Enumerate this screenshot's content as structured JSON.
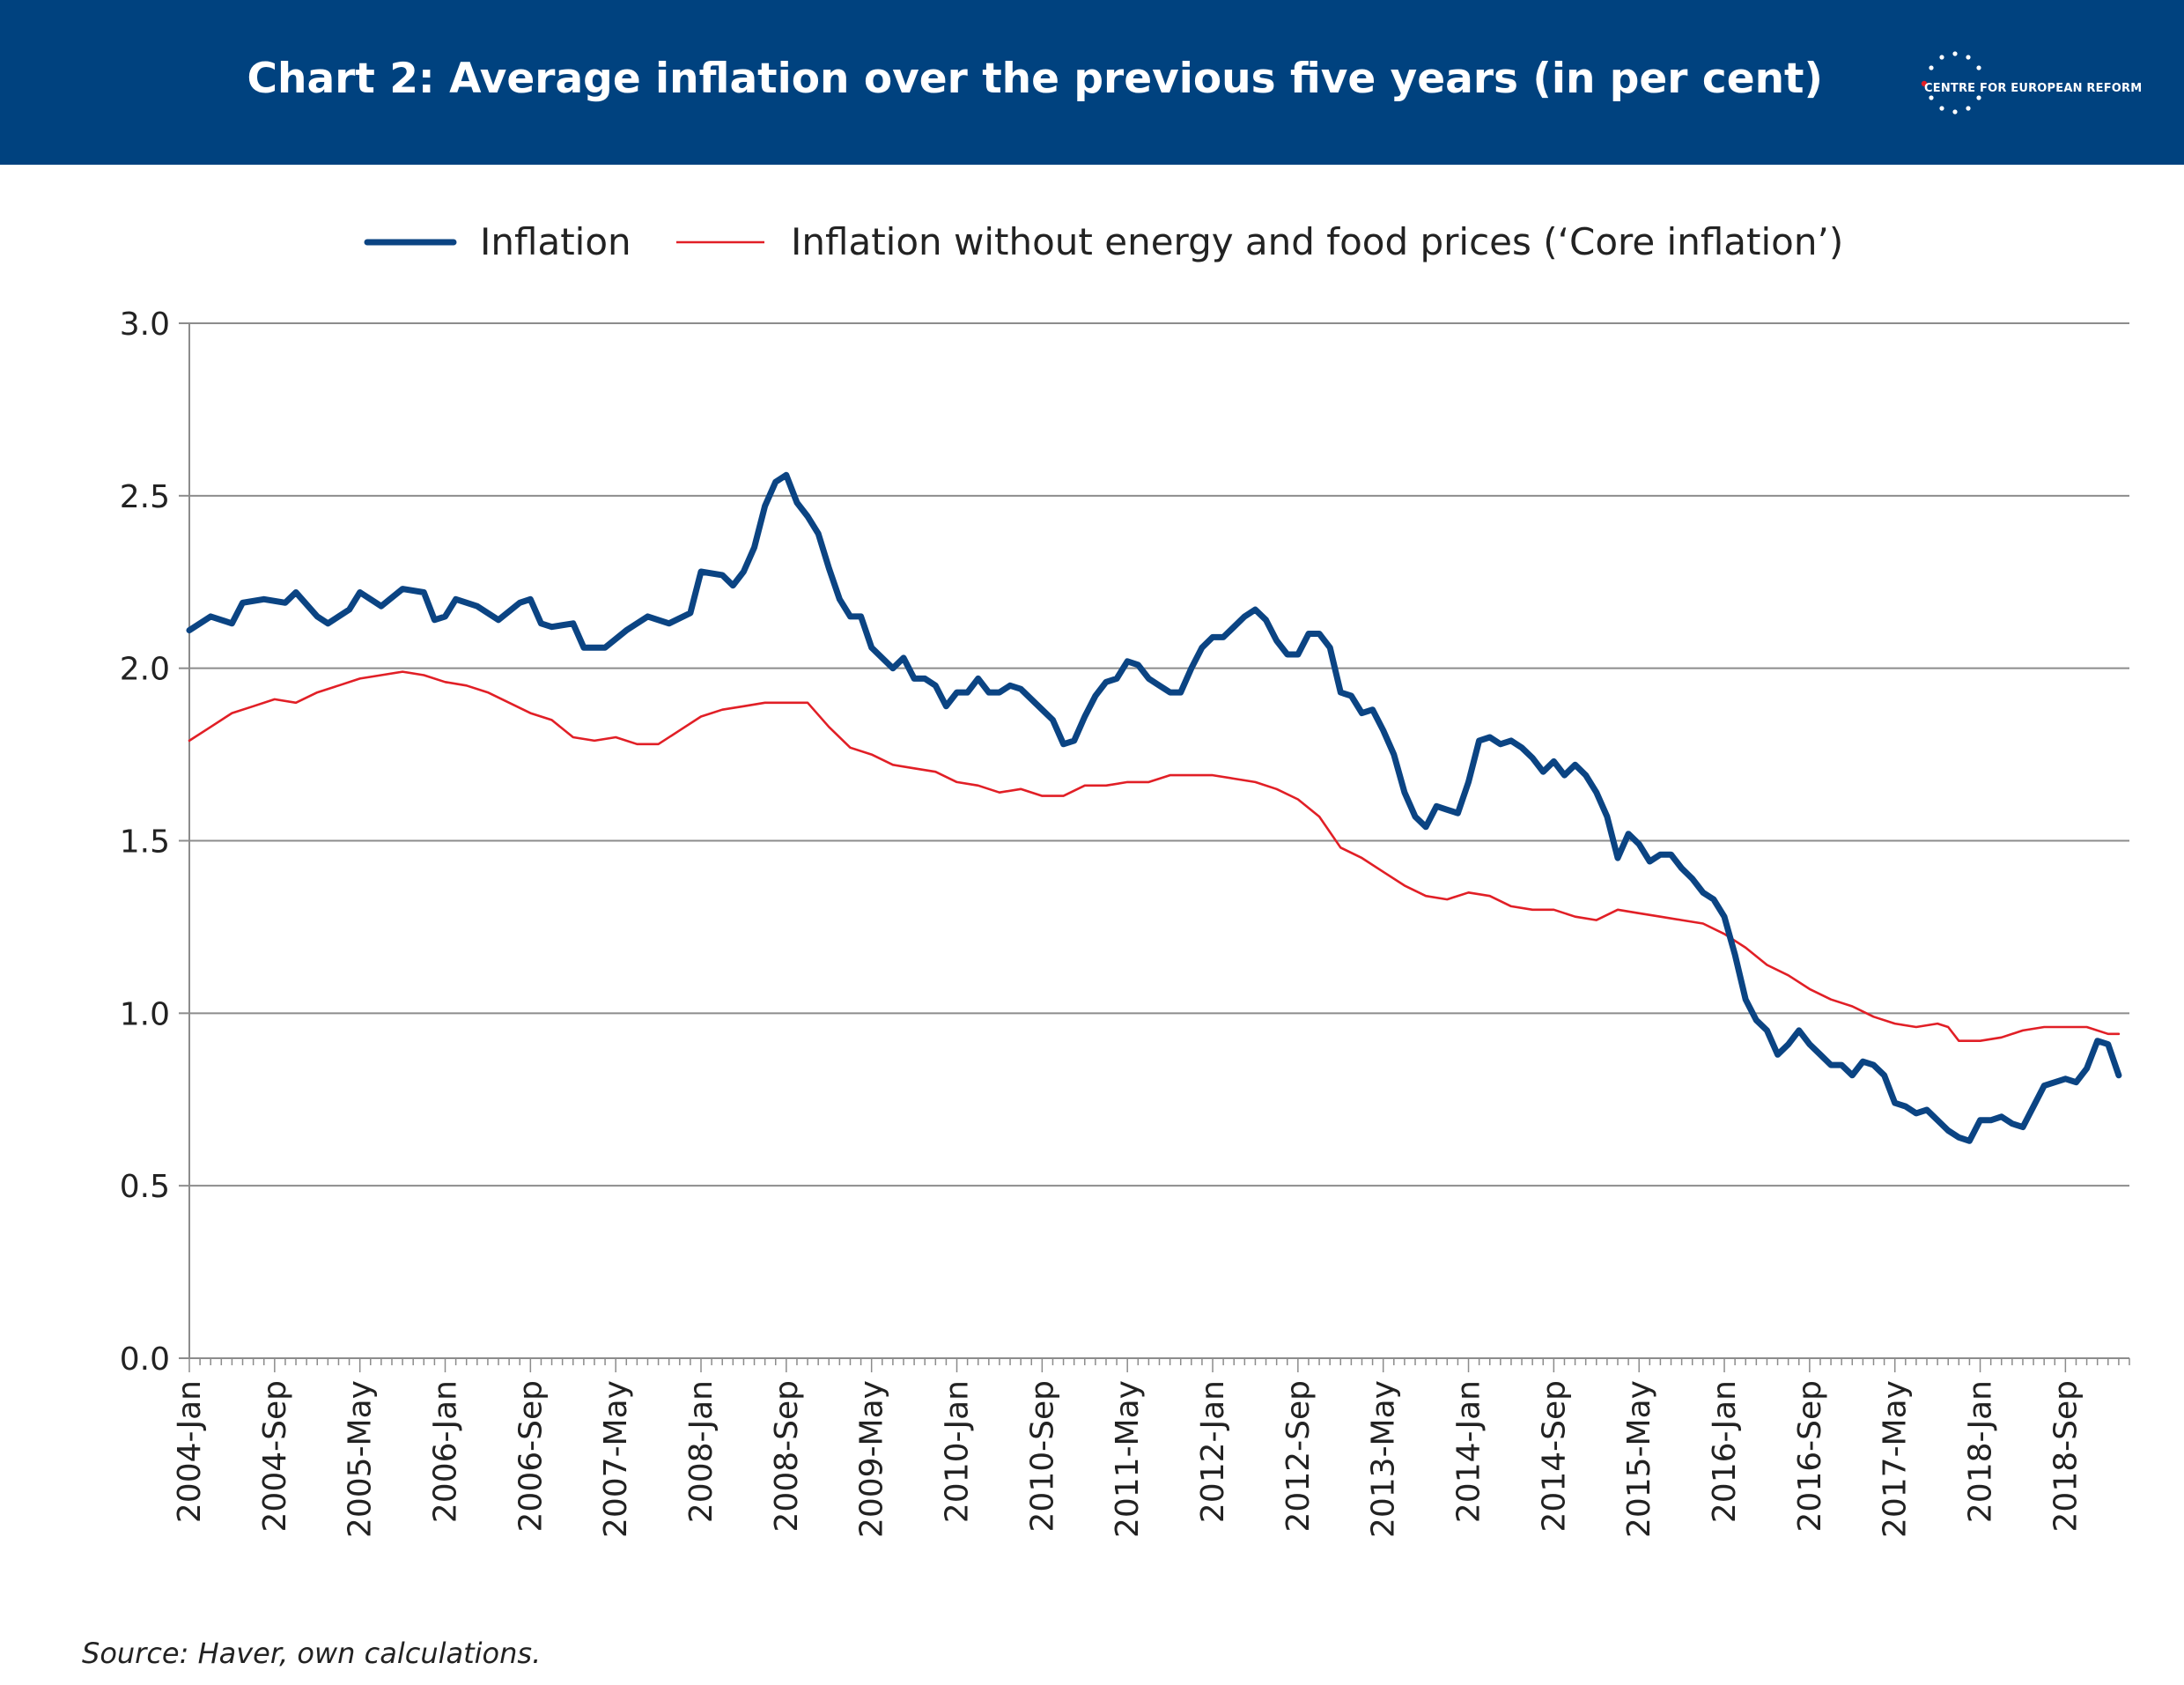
{
  "header": {
    "title": "Chart 2: Average inflation over the previous five years (in per cent)",
    "logo_text": "CENTRE FOR EUROPEAN REFORM"
  },
  "source": "Source: Haver, own calculations.",
  "colors": {
    "header_bg": "#00427f",
    "inflation": "#0b4483",
    "core": "#e11f26",
    "grid": "#8c8c8c"
  },
  "chart_data": {
    "type": "line",
    "title": "Chart 2: Average inflation over the previous five years (in per cent)",
    "ylim": [
      0,
      3
    ],
    "yticks": [
      "0.0",
      "0.5",
      "1.0",
      "1.5",
      "2.0",
      "2.5",
      "3.0"
    ],
    "xlim": [
      "2004-Jan",
      "2019-Mar"
    ],
    "xticks": [
      "2004-Jan",
      "2004-Sep",
      "2005-May",
      "2006-Jan",
      "2006-Sep",
      "2007-May",
      "2008-Jan",
      "2008-Sep",
      "2009-May",
      "2010-Jan",
      "2010-Sep",
      "2011-May",
      "2012-Jan",
      "2012-Sep",
      "2013-May",
      "2014-Jan",
      "2014-Sep",
      "2015-May",
      "2016-Jan",
      "2016-Sep",
      "2017-May",
      "2018-Jan",
      "2018-Sep"
    ],
    "grid": true,
    "legend_position": "top",
    "series": [
      {
        "name": "Inflation",
        "points": [
          [
            "2004-Jan",
            2.11
          ],
          [
            "2004-Mar",
            2.15
          ],
          [
            "2004-May",
            2.13
          ],
          [
            "2004-Jun",
            2.19
          ],
          [
            "2004-Aug",
            2.2
          ],
          [
            "2004-Oct",
            2.19
          ],
          [
            "2004-Nov",
            2.22
          ],
          [
            "2005-Jan",
            2.15
          ],
          [
            "2005-Feb",
            2.13
          ],
          [
            "2005-Apr",
            2.17
          ],
          [
            "2005-May",
            2.22
          ],
          [
            "2005-Jul",
            2.18
          ],
          [
            "2005-Sep",
            2.23
          ],
          [
            "2005-Nov",
            2.22
          ],
          [
            "2005-Dec",
            2.14
          ],
          [
            "2006-Jan",
            2.15
          ],
          [
            "2006-Feb",
            2.2
          ],
          [
            "2006-Apr",
            2.18
          ],
          [
            "2006-Jun",
            2.14
          ],
          [
            "2006-Aug",
            2.19
          ],
          [
            "2006-Sep",
            2.2
          ],
          [
            "2006-Oct",
            2.13
          ],
          [
            "2006-Nov",
            2.12
          ],
          [
            "2007-Jan",
            2.13
          ],
          [
            "2007-Feb",
            2.06
          ],
          [
            "2007-Apr",
            2.06
          ],
          [
            "2007-Jun",
            2.11
          ],
          [
            "2007-Aug",
            2.15
          ],
          [
            "2007-Oct",
            2.13
          ],
          [
            "2007-Dec",
            2.16
          ],
          [
            "2008-Jan",
            2.28
          ],
          [
            "2008-Mar",
            2.27
          ],
          [
            "2008-Apr",
            2.24
          ],
          [
            "2008-May",
            2.28
          ],
          [
            "2008-Jun",
            2.35
          ],
          [
            "2008-Jul",
            2.47
          ],
          [
            "2008-Aug",
            2.54
          ],
          [
            "2008-Sep",
            2.56
          ],
          [
            "2008-Oct",
            2.48
          ],
          [
            "2008-Nov",
            2.44
          ],
          [
            "2008-Dec",
            2.39
          ],
          [
            "2009-Jan",
            2.29
          ],
          [
            "2009-Feb",
            2.2
          ],
          [
            "2009-Mar",
            2.15
          ],
          [
            "2009-Apr",
            2.15
          ],
          [
            "2009-May",
            2.06
          ],
          [
            "2009-Jul",
            2.0
          ],
          [
            "2009-Aug",
            2.03
          ],
          [
            "2009-Sep",
            1.97
          ],
          [
            "2009-Oct",
            1.97
          ],
          [
            "2009-Nov",
            1.95
          ],
          [
            "2009-Dec",
            1.89
          ],
          [
            "2010-Jan",
            1.93
          ],
          [
            "2010-Feb",
            1.93
          ],
          [
            "2010-Mar",
            1.97
          ],
          [
            "2010-Apr",
            1.93
          ],
          [
            "2010-May",
            1.93
          ],
          [
            "2010-Jun",
            1.95
          ],
          [
            "2010-Jul",
            1.94
          ],
          [
            "2010-Sep",
            1.88
          ],
          [
            "2010-Oct",
            1.85
          ],
          [
            "2010-Nov",
            1.78
          ],
          [
            "2010-Dec",
            1.79
          ],
          [
            "2011-Jan",
            1.86
          ],
          [
            "2011-Feb",
            1.92
          ],
          [
            "2011-Mar",
            1.96
          ],
          [
            "2011-Apr",
            1.97
          ],
          [
            "2011-May",
            2.02
          ],
          [
            "2011-Jun",
            2.01
          ],
          [
            "2011-Jul",
            1.97
          ],
          [
            "2011-Aug",
            1.95
          ],
          [
            "2011-Sep",
            1.93
          ],
          [
            "2011-Oct",
            1.93
          ],
          [
            "2011-Nov",
            2.0
          ],
          [
            "2011-Dec",
            2.06
          ],
          [
            "2012-Jan",
            2.09
          ],
          [
            "2012-Feb",
            2.09
          ],
          [
            "2012-Mar",
            2.12
          ],
          [
            "2012-Apr",
            2.15
          ],
          [
            "2012-May",
            2.17
          ],
          [
            "2012-Jun",
            2.14
          ],
          [
            "2012-Jul",
            2.08
          ],
          [
            "2012-Aug",
            2.04
          ],
          [
            "2012-Sep",
            2.04
          ],
          [
            "2012-Oct",
            2.1
          ],
          [
            "2012-Nov",
            2.1
          ],
          [
            "2012-Dec",
            2.06
          ],
          [
            "2013-Jan",
            1.93
          ],
          [
            "2013-Feb",
            1.92
          ],
          [
            "2013-Mar",
            1.87
          ],
          [
            "2013-Apr",
            1.88
          ],
          [
            "2013-May",
            1.82
          ],
          [
            "2013-Jun",
            1.75
          ],
          [
            "2013-Jul",
            1.64
          ],
          [
            "2013-Aug",
            1.57
          ],
          [
            "2013-Sep",
            1.54
          ],
          [
            "2013-Oct",
            1.6
          ],
          [
            "2013-Nov",
            1.59
          ],
          [
            "2013-Dec",
            1.58
          ],
          [
            "2014-Jan",
            1.67
          ],
          [
            "2014-Feb",
            1.79
          ],
          [
            "2014-Mar",
            1.8
          ],
          [
            "2014-Apr",
            1.78
          ],
          [
            "2014-May",
            1.79
          ],
          [
            "2014-Jun",
            1.77
          ],
          [
            "2014-Jul",
            1.74
          ],
          [
            "2014-Aug",
            1.7
          ],
          [
            "2014-Sep",
            1.73
          ],
          [
            "2014-Oct",
            1.69
          ],
          [
            "2014-Nov",
            1.72
          ],
          [
            "2014-Dec",
            1.69
          ],
          [
            "2015-Jan",
            1.64
          ],
          [
            "2015-Feb",
            1.57
          ],
          [
            "2015-Mar",
            1.45
          ],
          [
            "2015-Apr",
            1.52
          ],
          [
            "2015-May",
            1.49
          ],
          [
            "2015-Jun",
            1.44
          ],
          [
            "2015-Jul",
            1.46
          ],
          [
            "2015-Aug",
            1.46
          ],
          [
            "2015-Sep",
            1.42
          ],
          [
            "2015-Oct",
            1.39
          ],
          [
            "2015-Nov",
            1.35
          ],
          [
            "2015-Dec",
            1.33
          ],
          [
            "2016-Jan",
            1.28
          ],
          [
            "2016-Feb",
            1.17
          ],
          [
            "2016-Mar",
            1.04
          ],
          [
            "2016-Apr",
            0.98
          ],
          [
            "2016-May",
            0.95
          ],
          [
            "2016-Jun",
            0.88
          ],
          [
            "2016-Jul",
            0.91
          ],
          [
            "2016-Aug",
            0.95
          ],
          [
            "2016-Sep",
            0.91
          ],
          [
            "2016-Oct",
            0.88
          ],
          [
            "2016-Nov",
            0.85
          ],
          [
            "2016-Dec",
            0.85
          ],
          [
            "2017-Jan",
            0.82
          ],
          [
            "2017-Feb",
            0.86
          ],
          [
            "2017-Mar",
            0.85
          ],
          [
            "2017-Apr",
            0.82
          ],
          [
            "2017-May",
            0.74
          ],
          [
            "2017-Jun",
            0.73
          ],
          [
            "2017-Jul",
            0.71
          ],
          [
            "2017-Aug",
            0.72
          ],
          [
            "2017-Sep",
            0.69
          ],
          [
            "2017-Oct",
            0.66
          ],
          [
            "2017-Nov",
            0.64
          ],
          [
            "2017-Dec",
            0.63
          ],
          [
            "2018-Jan",
            0.69
          ],
          [
            "2018-Feb",
            0.69
          ],
          [
            "2018-Mar",
            0.7
          ],
          [
            "2018-Apr",
            0.68
          ],
          [
            "2018-May",
            0.67
          ],
          [
            "2018-Jun",
            0.73
          ],
          [
            "2018-Jul",
            0.79
          ],
          [
            "2018-Aug",
            0.8
          ],
          [
            "2018-Sep",
            0.81
          ],
          [
            "2018-Oct",
            0.8
          ],
          [
            "2018-Nov",
            0.84
          ],
          [
            "2018-Dec",
            0.92
          ],
          [
            "2019-Jan",
            0.91
          ],
          [
            "2019-Feb",
            0.82
          ]
        ]
      },
      {
        "name": "Inflation without energy and food prices (‘Core inflation’)",
        "points": [
          [
            "2004-Jan",
            1.79
          ],
          [
            "2004-Mar",
            1.83
          ],
          [
            "2004-May",
            1.87
          ],
          [
            "2004-Jul",
            1.89
          ],
          [
            "2004-Sep",
            1.91
          ],
          [
            "2004-Nov",
            1.9
          ],
          [
            "2005-Jan",
            1.93
          ],
          [
            "2005-Mar",
            1.95
          ],
          [
            "2005-May",
            1.97
          ],
          [
            "2005-Jul",
            1.98
          ],
          [
            "2005-Sep",
            1.99
          ],
          [
            "2005-Nov",
            1.98
          ],
          [
            "2006-Jan",
            1.96
          ],
          [
            "2006-Mar",
            1.95
          ],
          [
            "2006-May",
            1.93
          ],
          [
            "2006-Jul",
            1.9
          ],
          [
            "2006-Sep",
            1.87
          ],
          [
            "2006-Nov",
            1.85
          ],
          [
            "2007-Jan",
            1.8
          ],
          [
            "2007-Mar",
            1.79
          ],
          [
            "2007-May",
            1.8
          ],
          [
            "2007-Jul",
            1.78
          ],
          [
            "2007-Sep",
            1.78
          ],
          [
            "2007-Nov",
            1.82
          ],
          [
            "2008-Jan",
            1.86
          ],
          [
            "2008-Mar",
            1.88
          ],
          [
            "2008-May",
            1.89
          ],
          [
            "2008-Jul",
            1.9
          ],
          [
            "2008-Sep",
            1.9
          ],
          [
            "2008-Nov",
            1.9
          ],
          [
            "2009-Jan",
            1.83
          ],
          [
            "2009-Mar",
            1.77
          ],
          [
            "2009-May",
            1.75
          ],
          [
            "2009-Jul",
            1.72
          ],
          [
            "2009-Sep",
            1.71
          ],
          [
            "2009-Nov",
            1.7
          ],
          [
            "2010-Jan",
            1.67
          ],
          [
            "2010-Mar",
            1.66
          ],
          [
            "2010-May",
            1.64
          ],
          [
            "2010-Jul",
            1.65
          ],
          [
            "2010-Sep",
            1.63
          ],
          [
            "2010-Nov",
            1.63
          ],
          [
            "2011-Jan",
            1.66
          ],
          [
            "2011-Mar",
            1.66
          ],
          [
            "2011-May",
            1.67
          ],
          [
            "2011-Jul",
            1.67
          ],
          [
            "2011-Sep",
            1.69
          ],
          [
            "2011-Nov",
            1.69
          ],
          [
            "2012-Jan",
            1.69
          ],
          [
            "2012-Mar",
            1.68
          ],
          [
            "2012-May",
            1.67
          ],
          [
            "2012-Jul",
            1.65
          ],
          [
            "2012-Sep",
            1.62
          ],
          [
            "2012-Nov",
            1.57
          ],
          [
            "2013-Jan",
            1.48
          ],
          [
            "2013-Mar",
            1.45
          ],
          [
            "2013-May",
            1.41
          ],
          [
            "2013-Jul",
            1.37
          ],
          [
            "2013-Sep",
            1.34
          ],
          [
            "2013-Nov",
            1.33
          ],
          [
            "2014-Jan",
            1.35
          ],
          [
            "2014-Mar",
            1.34
          ],
          [
            "2014-May",
            1.31
          ],
          [
            "2014-Jul",
            1.3
          ],
          [
            "2014-Sep",
            1.3
          ],
          [
            "2014-Nov",
            1.28
          ],
          [
            "2015-Jan",
            1.27
          ],
          [
            "2015-Mar",
            1.3
          ],
          [
            "2015-May",
            1.29
          ],
          [
            "2015-Jul",
            1.28
          ],
          [
            "2015-Sep",
            1.27
          ],
          [
            "2015-Nov",
            1.26
          ],
          [
            "2016-Jan",
            1.23
          ],
          [
            "2016-Mar",
            1.19
          ],
          [
            "2016-May",
            1.14
          ],
          [
            "2016-Jul",
            1.11
          ],
          [
            "2016-Sep",
            1.07
          ],
          [
            "2016-Nov",
            1.04
          ],
          [
            "2017-Jan",
            1.02
          ],
          [
            "2017-Mar",
            0.99
          ],
          [
            "2017-May",
            0.97
          ],
          [
            "2017-Jul",
            0.96
          ],
          [
            "2017-Sep",
            0.97
          ],
          [
            "2017-Oct",
            0.96
          ],
          [
            "2017-Nov",
            0.92
          ],
          [
            "2018-Jan",
            0.92
          ],
          [
            "2018-Mar",
            0.93
          ],
          [
            "2018-May",
            0.95
          ],
          [
            "2018-Jul",
            0.96
          ],
          [
            "2018-Sep",
            0.96
          ],
          [
            "2018-Nov",
            0.96
          ],
          [
            "2019-Jan",
            0.94
          ],
          [
            "2019-Feb",
            0.94
          ]
        ]
      }
    ]
  }
}
